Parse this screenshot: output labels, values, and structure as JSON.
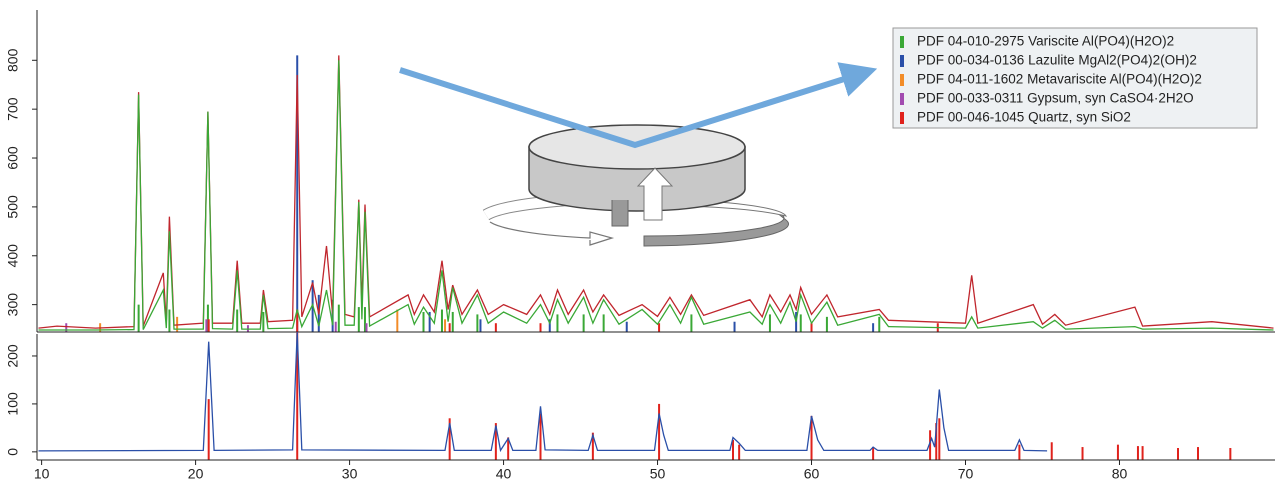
{
  "chart_data": [
    {
      "type": "line",
      "xlim": [
        9.7,
        90.1
      ],
      "ylim": [
        244,
        907
      ],
      "yticks": [
        300,
        400,
        500,
        600,
        700,
        800
      ],
      "legend": "top-right",
      "series": [
        {
          "type": "line",
          "color": "#c0262d",
          "x": [
            9.8,
            11.0,
            13.5,
            16.0,
            16.3,
            16.6,
            17.9,
            18.1,
            18.3,
            18.6,
            20.5,
            20.8,
            21.1,
            22.4,
            22.7,
            23.0,
            24.2,
            24.4,
            24.7,
            26.3,
            26.6,
            26.9,
            27.6,
            28.0,
            28.5,
            28.9,
            29.3,
            29.7,
            30.3,
            30.6,
            30.8,
            31.0,
            31.3,
            33.8,
            34.2,
            34.8,
            35.5,
            36.0,
            36.4,
            36.7,
            37.3,
            38.3,
            39.0,
            40.0,
            41.5,
            42.4,
            43.0,
            43.5,
            44.2,
            45.2,
            45.8,
            46.5,
            47.5,
            49.0,
            50.0,
            50.8,
            51.5,
            52.2,
            53.0,
            56.0,
            56.8,
            57.3,
            58.0,
            58.6,
            59.0,
            59.3,
            60.0,
            61.0,
            61.7,
            64.4,
            65.0,
            70.0,
            70.4,
            70.8,
            74.4,
            75.0,
            75.8,
            76.5,
            81.0,
            81.5,
            86.0,
            90.0
          ],
          "values": [
            252,
            256,
            252,
            255,
            735,
            256,
            365,
            262,
            480,
            258,
            262,
            695,
            262,
            262,
            390,
            262,
            262,
            330,
            265,
            268,
            770,
            275,
            345,
            280,
            420,
            280,
            810,
            280,
            275,
            515,
            300,
            505,
            275,
            320,
            280,
            320,
            285,
            390,
            290,
            340,
            280,
            330,
            280,
            300,
            280,
            320,
            280,
            330,
            280,
            330,
            285,
            320,
            278,
            300,
            276,
            315,
            280,
            320,
            278,
            310,
            275,
            320,
            285,
            320,
            290,
            335,
            280,
            320,
            275,
            290,
            268,
            262,
            360,
            262,
            300,
            260,
            280,
            258,
            295,
            256,
            265,
            252
          ]
        },
        {
          "type": "line",
          "color": "#3aa836",
          "x": [
            9.8,
            11.0,
            13.5,
            16.0,
            16.3,
            16.6,
            17.9,
            18.1,
            18.3,
            18.6,
            20.5,
            20.8,
            21.1,
            22.4,
            22.7,
            23.0,
            24.2,
            24.4,
            24.7,
            26.3,
            26.6,
            26.9,
            27.6,
            28.0,
            28.5,
            28.9,
            29.3,
            29.7,
            30.3,
            30.6,
            30.8,
            31.0,
            31.3,
            33.8,
            34.2,
            34.8,
            35.5,
            36.0,
            36.4,
            36.7,
            37.3,
            38.3,
            39.0,
            40.0,
            41.5,
            42.4,
            43.0,
            43.5,
            44.2,
            45.2,
            45.8,
            46.5,
            47.5,
            49.0,
            50.0,
            50.8,
            51.5,
            52.2,
            53.0,
            56.0,
            56.8,
            57.3,
            58.0,
            58.6,
            59.0,
            59.3,
            60.0,
            61.0,
            61.7,
            64.4,
            65.0,
            70.0,
            70.4,
            70.8,
            74.4,
            75.0,
            75.8,
            76.5,
            81.0,
            81.5,
            86.0,
            90.0
          ],
          "values": [
            248,
            248,
            248,
            249,
            730,
            249,
            330,
            252,
            450,
            250,
            250,
            695,
            251,
            250,
            370,
            250,
            250,
            320,
            251,
            252,
            290,
            255,
            300,
            256,
            330,
            258,
            800,
            258,
            258,
            510,
            270,
            490,
            256,
            300,
            260,
            295,
            262,
            370,
            265,
            335,
            262,
            320,
            262,
            285,
            262,
            300,
            262,
            310,
            262,
            315,
            262,
            310,
            260,
            290,
            260,
            300,
            262,
            315,
            260,
            285,
            260,
            300,
            262,
            305,
            265,
            320,
            262,
            305,
            258,
            280,
            255,
            252,
            275,
            252,
            265,
            252,
            268,
            250,
            255,
            250,
            252,
            248
          ]
        },
        {
          "type": "stick",
          "name": "PDF 04-010-2975 Variscite Al(PO4)(H2O)2",
          "color": "#3aa836",
          "x": [
            16.3,
            18.3,
            20.8,
            22.7,
            24.4,
            29.3,
            30.6,
            31.0,
            34.8,
            36.0,
            36.7,
            38.3,
            43.5,
            45.2,
            46.5,
            52.2,
            57.3,
            59.3,
            61.0,
            64.4
          ],
          "values": [
            300,
            290,
            300,
            290,
            285,
            300,
            295,
            295,
            285,
            290,
            285,
            280,
            280,
            280,
            280,
            280,
            280,
            280,
            275,
            275
          ]
        },
        {
          "type": "stick",
          "name": "PDF 00-034-0136 Lazulite MgAl2(PO4)2(OH)2",
          "color": "#2a4fa8",
          "x": [
            26.6,
            27.6,
            28.0,
            28.9,
            35.2,
            38.5,
            43.0,
            48.0,
            55.0,
            59.0,
            64.0
          ],
          "values": [
            810,
            350,
            320,
            310,
            285,
            270,
            270,
            265,
            265,
            285,
            262
          ]
        },
        {
          "type": "stick",
          "name": "PDF 04-011-1602 Metavariscite Al(PO4)(H2O)2",
          "color": "#f28c28",
          "x": [
            13.8,
            18.8,
            33.1,
            36.2
          ],
          "values": [
            262,
            275,
            290,
            270
          ]
        },
        {
          "type": "stick",
          "name": "PDF 00-033-0311 Gypsum, syn CaSO4·2H2O",
          "color": "#a24bb0",
          "x": [
            11.6,
            20.7,
            23.4,
            29.1,
            31.1
          ],
          "values": [
            262,
            270,
            258,
            265,
            262
          ]
        },
        {
          "type": "stick",
          "name": "PDF 00-046-1045 Quartz, syn SiO2",
          "color": "#e0221c",
          "x": [
            20.85,
            26.6,
            36.5,
            39.5,
            42.4,
            50.1,
            60.0,
            68.2
          ],
          "values": [
            270,
            290,
            262,
            262,
            262,
            262,
            262,
            262
          ]
        }
      ]
    },
    {
      "type": "line",
      "xlim": [
        9.7,
        90.1
      ],
      "ylim": [
        -17,
        250
      ],
      "yticks": [
        0,
        100,
        200
      ],
      "xticks": [
        10,
        20,
        30,
        40,
        50,
        60,
        70,
        80
      ],
      "series": [
        {
          "type": "line",
          "color": "#2a4fa8",
          "x": [
            9.8,
            20.5,
            20.85,
            21.2,
            26.3,
            26.6,
            26.9,
            36.2,
            36.5,
            36.8,
            39.2,
            39.5,
            39.8,
            40.3,
            40.6,
            42.1,
            42.4,
            42.7,
            45.5,
            45.8,
            46.1,
            49.8,
            50.1,
            50.4,
            50.7,
            54.7,
            54.9,
            55.3,
            55.7,
            59.7,
            60.0,
            60.4,
            60.8,
            63.8,
            64.0,
            64.3,
            67.5,
            67.8,
            68.0,
            68.3,
            68.6,
            68.9,
            73.2,
            73.5,
            73.8,
            75.3
          ],
          "values": [
            2,
            3,
            230,
            3,
            4,
            250,
            4,
            3,
            60,
            3,
            3,
            55,
            3,
            28,
            3,
            3,
            95,
            4,
            3,
            35,
            3,
            3,
            80,
            35,
            3,
            3,
            30,
            18,
            3,
            3,
            75,
            25,
            3,
            3,
            10,
            3,
            3,
            28,
            10,
            130,
            50,
            3,
            3,
            25,
            3,
            2
          ]
        },
        {
          "type": "stick",
          "color": "#e0221c",
          "x": [
            20.85,
            26.6,
            36.5,
            39.5,
            40.3,
            42.4,
            45.8,
            50.1,
            54.9,
            55.3,
            60.0,
            64.0,
            67.7,
            68.1,
            68.3,
            73.5,
            75.6,
            77.6,
            79.9,
            81.2,
            81.5,
            83.8,
            85.1,
            87.2
          ],
          "values": [
            110,
            250,
            70,
            60,
            30,
            80,
            40,
            100,
            25,
            15,
            75,
            10,
            45,
            60,
            70,
            15,
            20,
            10,
            15,
            12,
            12,
            8,
            10,
            8
          ]
        }
      ]
    }
  ]
}
